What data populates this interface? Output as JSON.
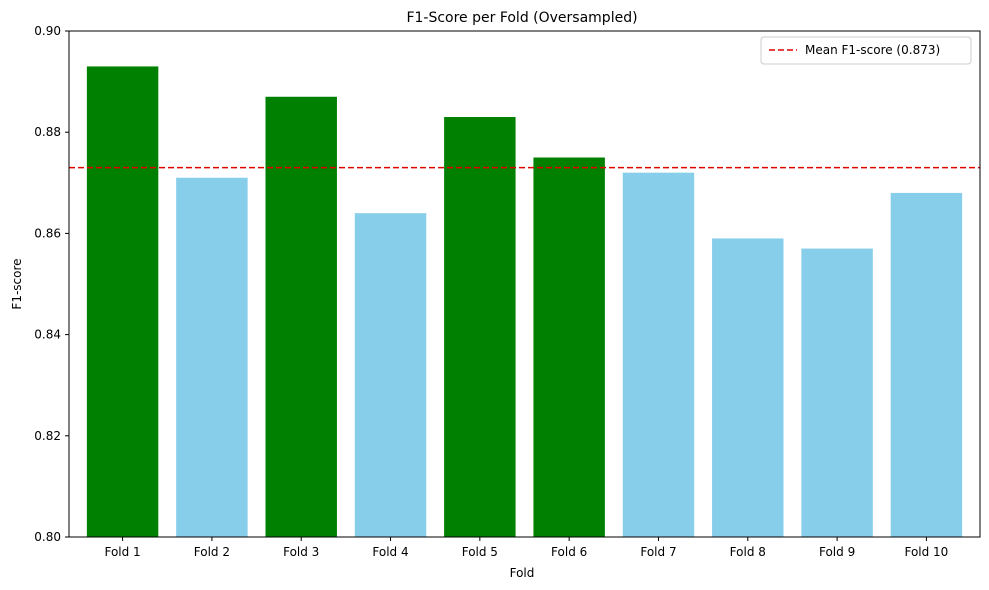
{
  "chart_data": {
    "type": "bar",
    "title": "F1-Score per Fold (Oversampled)",
    "xlabel": "Fold",
    "ylabel": "F1-score",
    "categories": [
      "Fold 1",
      "Fold 2",
      "Fold 3",
      "Fold 4",
      "Fold 5",
      "Fold 6",
      "Fold 7",
      "Fold 8",
      "Fold 9",
      "Fold 10"
    ],
    "values": [
      0.893,
      0.871,
      0.887,
      0.864,
      0.883,
      0.875,
      0.872,
      0.859,
      0.857,
      0.868
    ],
    "ylim": [
      0.8,
      0.9
    ],
    "yticks": [
      "0.80",
      "0.82",
      "0.84",
      "0.86",
      "0.88",
      "0.90"
    ],
    "mean": 0.873,
    "legend": {
      "label": "Mean F1-score (0.873)",
      "placement": "top-right"
    },
    "grid": false,
    "colors": {
      "above_mean": "#008000",
      "below_mean": "#87ceeb",
      "mean_line": "#e00000",
      "axis": "#000000"
    }
  }
}
